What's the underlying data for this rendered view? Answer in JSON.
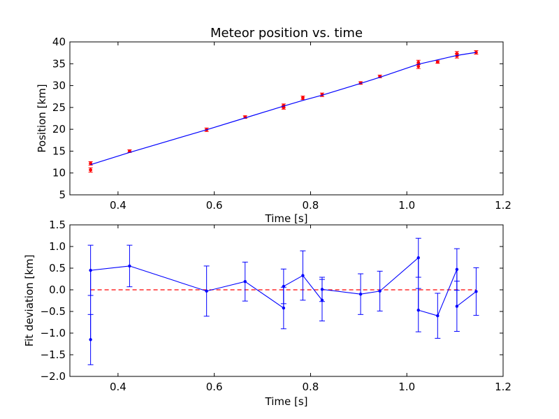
{
  "chart_data": [
    {
      "type": "scatter",
      "title": "Meteor position vs. time",
      "xlabel": "Time [s]",
      "ylabel": "Position [km]",
      "xlim": [
        0.3,
        1.2
      ],
      "ylim": [
        5,
        40
      ],
      "xticks": [
        0.4,
        0.6,
        0.8,
        1.0,
        1.2
      ],
      "xtick_labels": [
        "0.4",
        "0.6",
        "0.8",
        "1.0",
        "1.2"
      ],
      "yticks": [
        5,
        10,
        15,
        20,
        25,
        30,
        35,
        40
      ],
      "ytick_labels": [
        "5",
        "10",
        "15",
        "20",
        "25",
        "30",
        "35",
        "40"
      ],
      "grid": false,
      "series": [
        {
          "kind": "points-with-errorbars",
          "color": "#ff0000",
          "x": [
            0.343,
            0.343,
            0.424,
            0.584,
            0.664,
            0.744,
            0.744,
            0.784,
            0.824,
            0.904,
            0.944,
            1.024,
            1.024,
            1.064,
            1.104,
            1.104,
            1.144
          ],
          "y": [
            12.2,
            10.7,
            15.0,
            19.9,
            22.8,
            25.0,
            25.4,
            27.2,
            27.9,
            30.6,
            32.1,
            34.4,
            35.3,
            35.4,
            36.8,
            37.3,
            37.6
          ],
          "yerr": [
            0.4,
            0.5,
            0.3,
            0.4,
            0.3,
            0.4,
            0.4,
            0.4,
            0.4,
            0.3,
            0.3,
            0.5,
            0.5,
            0.3,
            0.5,
            0.5,
            0.4
          ]
        },
        {
          "kind": "fit-line",
          "color": "#0000ff",
          "x": [
            0.343,
            0.424,
            0.584,
            0.664,
            0.744,
            0.784,
            0.824,
            0.904,
            0.944,
            1.024,
            1.064,
            1.104,
            1.144
          ],
          "y": [
            11.9,
            14.7,
            19.9,
            22.6,
            25.3,
            26.6,
            27.8,
            30.5,
            31.9,
            34.9,
            35.9,
            36.9,
            37.6
          ]
        }
      ]
    },
    {
      "type": "line",
      "title": "",
      "xlabel": "Time [s]",
      "ylabel": "Fit deviation [km]",
      "xlim": [
        0.3,
        1.2
      ],
      "ylim": [
        -2.0,
        1.5
      ],
      "xticks": [
        0.4,
        0.6,
        0.8,
        1.0,
        1.2
      ],
      "xtick_labels": [
        "0.4",
        "0.6",
        "0.8",
        "1.0",
        "1.2"
      ],
      "yticks": [
        -2.0,
        -1.5,
        -1.0,
        -0.5,
        0.0,
        0.5,
        1.0,
        1.5
      ],
      "ytick_labels": [
        "−2.0",
        "−1.5",
        "−1.0",
        "−0.5",
        "0.0",
        "0.5",
        "1.0",
        "1.5"
      ],
      "grid": false,
      "series": [
        {
          "kind": "line-with-errorbars",
          "color": "#0000ff",
          "x": [
            0.343,
            0.343,
            0.424,
            0.584,
            0.664,
            0.744,
            0.744,
            0.784,
            0.824,
            0.824,
            0.904,
            0.944,
            1.024,
            1.024,
            1.064,
            1.104,
            1.104,
            1.144
          ],
          "y": [
            -1.15,
            0.45,
            0.55,
            -0.03,
            0.19,
            -0.42,
            0.08,
            0.33,
            -0.24,
            0.01,
            -0.1,
            -0.03,
            0.74,
            -0.47,
            -0.6,
            0.47,
            -0.38,
            -0.04
          ],
          "yerr": [
            0.58,
            0.58,
            0.48,
            0.58,
            0.45,
            0.48,
            0.4,
            0.57,
            0.48,
            0.28,
            0.47,
            0.46,
            0.45,
            0.5,
            0.52,
            0.48,
            0.58,
            0.55
          ]
        },
        {
          "kind": "zero-reference",
          "color": "#ff0000",
          "dashed": true,
          "x": [
            0.343,
            1.144
          ],
          "y": [
            0,
            0
          ]
        }
      ]
    }
  ]
}
